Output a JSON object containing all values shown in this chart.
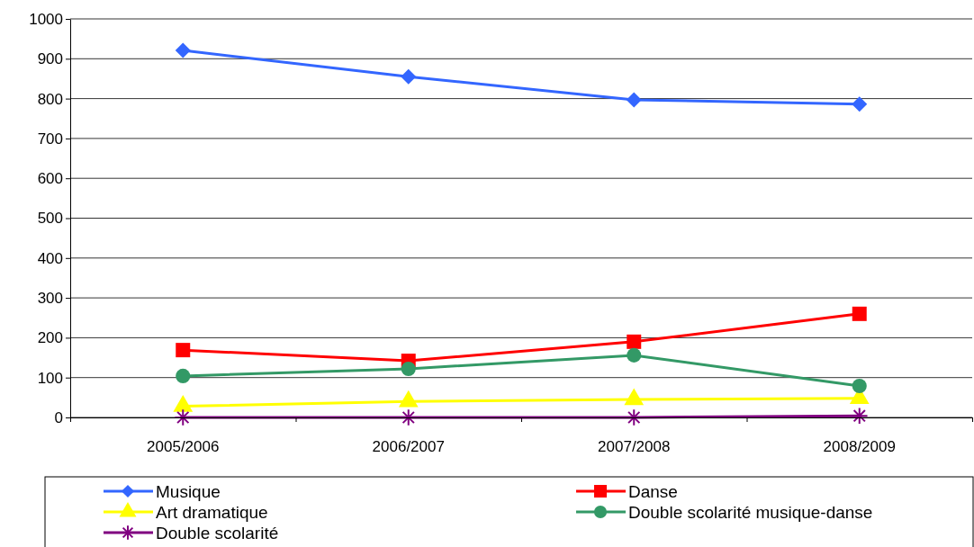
{
  "chart_data": {
    "type": "line",
    "categories": [
      "2005/2006",
      "2006/2007",
      "2007/2008",
      "2008/2009"
    ],
    "series": [
      {
        "name": "Musique",
        "color": "#3366ff",
        "marker": "diamond",
        "values": [
          921,
          855,
          797,
          786
        ]
      },
      {
        "name": "Danse",
        "color": "#ff0000",
        "marker": "square",
        "values": [
          169,
          142,
          190,
          260
        ]
      },
      {
        "name": "Art dramatique",
        "color": "#ffff00",
        "marker": "triangle",
        "values": [
          28,
          40,
          45,
          48
        ]
      },
      {
        "name": "Double scolarité musique-danse",
        "color": "#339966",
        "marker": "circle",
        "values": [
          104,
          122,
          156,
          79
        ]
      },
      {
        "name": "Double scolarité",
        "color": "#800080",
        "marker": "cross",
        "values": [
          0,
          0,
          0,
          4
        ]
      }
    ],
    "ylim": [
      0,
      1000
    ],
    "yticks": [
      0,
      100,
      200,
      300,
      400,
      500,
      600,
      700,
      800,
      900,
      1000
    ],
    "grid": "y",
    "legend": "bottom",
    "line_style": "solid"
  }
}
